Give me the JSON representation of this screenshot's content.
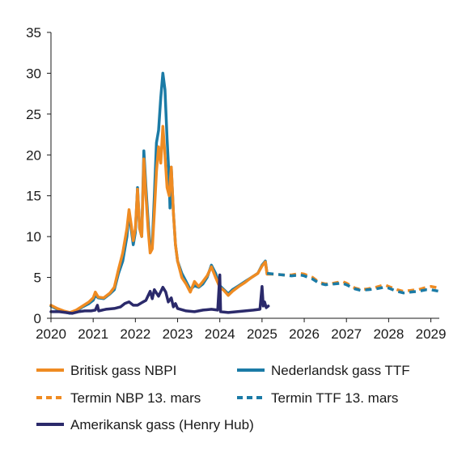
{
  "chart_data": {
    "type": "line",
    "title": "",
    "xlabel": "",
    "ylabel": "",
    "xlim": [
      2020,
      2029.2
    ],
    "ylim": [
      0,
      35
    ],
    "x_ticks": [
      "2020",
      "2021",
      "2022",
      "2023",
      "2024",
      "2025",
      "2026",
      "2027",
      "2028",
      "2029"
    ],
    "y_ticks": [
      "0",
      "5",
      "10",
      "15",
      "20",
      "25",
      "30",
      "35"
    ],
    "grid": false,
    "legend_position": "bottom",
    "series": [
      {
        "name": "Nederlandsk gass TTF",
        "color": "#1b7ba6",
        "dash": "solid",
        "points": [
          [
            2020.0,
            1.5
          ],
          [
            2020.15,
            1.1
          ],
          [
            2020.3,
            0.8
          ],
          [
            2020.45,
            0.6
          ],
          [
            2020.6,
            0.9
          ],
          [
            2020.75,
            1.4
          ],
          [
            2020.9,
            1.8
          ],
          [
            2021.0,
            2.2
          ],
          [
            2021.05,
            2.8
          ],
          [
            2021.12,
            2.5
          ],
          [
            2021.25,
            2.4
          ],
          [
            2021.4,
            3.0
          ],
          [
            2021.5,
            3.5
          ],
          [
            2021.6,
            5.5
          ],
          [
            2021.7,
            7.0
          ],
          [
            2021.8,
            10.0
          ],
          [
            2021.85,
            13.0
          ],
          [
            2021.9,
            11.0
          ],
          [
            2021.95,
            9.0
          ],
          [
            2022.0,
            10.5
          ],
          [
            2022.05,
            16.0
          ],
          [
            2022.1,
            11.0
          ],
          [
            2022.15,
            10.0
          ],
          [
            2022.2,
            20.5
          ],
          [
            2022.25,
            16.0
          ],
          [
            2022.3,
            12.0
          ],
          [
            2022.35,
            8.5
          ],
          [
            2022.4,
            9.0
          ],
          [
            2022.45,
            15.0
          ],
          [
            2022.5,
            21.5
          ],
          [
            2022.55,
            23.0
          ],
          [
            2022.6,
            27.0
          ],
          [
            2022.65,
            30.0
          ],
          [
            2022.7,
            28.0
          ],
          [
            2022.75,
            22.0
          ],
          [
            2022.8,
            17.0
          ],
          [
            2022.82,
            13.5
          ],
          [
            2022.85,
            18.5
          ],
          [
            2022.9,
            13.0
          ],
          [
            2022.95,
            9.0
          ],
          [
            2023.0,
            7.0
          ],
          [
            2023.1,
            5.5
          ],
          [
            2023.2,
            4.5
          ],
          [
            2023.3,
            3.5
          ],
          [
            2023.4,
            4.0
          ],
          [
            2023.5,
            3.8
          ],
          [
            2023.6,
            4.2
          ],
          [
            2023.7,
            5.0
          ],
          [
            2023.8,
            6.5
          ],
          [
            2023.9,
            5.5
          ],
          [
            2024.0,
            4.0
          ],
          [
            2024.1,
            3.5
          ],
          [
            2024.2,
            3.0
          ],
          [
            2024.3,
            3.5
          ],
          [
            2024.45,
            4.0
          ],
          [
            2024.6,
            4.5
          ],
          [
            2024.75,
            5.0
          ],
          [
            2024.9,
            5.5
          ],
          [
            2025.0,
            6.5
          ],
          [
            2025.08,
            7.0
          ],
          [
            2025.12,
            5.5
          ]
        ]
      },
      {
        "name": "Britisk gass NBPI",
        "color": "#ef8b22",
        "dash": "solid",
        "points": [
          [
            2020.0,
            1.6
          ],
          [
            2020.15,
            1.2
          ],
          [
            2020.3,
            0.9
          ],
          [
            2020.45,
            0.7
          ],
          [
            2020.6,
            1.0
          ],
          [
            2020.75,
            1.5
          ],
          [
            2020.9,
            2.0
          ],
          [
            2021.0,
            2.5
          ],
          [
            2021.05,
            3.2
          ],
          [
            2021.12,
            2.6
          ],
          [
            2021.25,
            2.5
          ],
          [
            2021.4,
            3.1
          ],
          [
            2021.5,
            3.8
          ],
          [
            2021.6,
            6.0
          ],
          [
            2021.7,
            8.0
          ],
          [
            2021.8,
            11.0
          ],
          [
            2021.85,
            13.3
          ],
          [
            2021.9,
            11.5
          ],
          [
            2021.95,
            9.5
          ],
          [
            2022.0,
            11.0
          ],
          [
            2022.05,
            15.8
          ],
          [
            2022.1,
            11.0
          ],
          [
            2022.15,
            10.0
          ],
          [
            2022.2,
            19.5
          ],
          [
            2022.25,
            15.0
          ],
          [
            2022.3,
            11.0
          ],
          [
            2022.35,
            8.0
          ],
          [
            2022.4,
            8.5
          ],
          [
            2022.45,
            13.0
          ],
          [
            2022.5,
            18.0
          ],
          [
            2022.55,
            21.0
          ],
          [
            2022.6,
            19.0
          ],
          [
            2022.65,
            23.5
          ],
          [
            2022.7,
            20.0
          ],
          [
            2022.75,
            16.0
          ],
          [
            2022.8,
            15.0
          ],
          [
            2022.85,
            18.5
          ],
          [
            2022.9,
            13.0
          ],
          [
            2022.95,
            9.0
          ],
          [
            2023.0,
            7.0
          ],
          [
            2023.1,
            5.0
          ],
          [
            2023.2,
            4.2
          ],
          [
            2023.3,
            3.2
          ],
          [
            2023.4,
            4.5
          ],
          [
            2023.5,
            3.9
          ],
          [
            2023.6,
            4.5
          ],
          [
            2023.7,
            5.2
          ],
          [
            2023.8,
            6.3
          ],
          [
            2023.9,
            5.0
          ],
          [
            2024.0,
            3.8
          ],
          [
            2024.1,
            3.4
          ],
          [
            2024.2,
            2.8
          ],
          [
            2024.3,
            3.3
          ],
          [
            2024.45,
            3.9
          ],
          [
            2024.6,
            4.4
          ],
          [
            2024.75,
            5.0
          ],
          [
            2024.9,
            5.5
          ],
          [
            2025.0,
            6.4
          ],
          [
            2025.08,
            6.9
          ],
          [
            2025.12,
            5.4
          ]
        ]
      },
      {
        "name": "Termin NBP 13. mars",
        "color": "#ef8b22",
        "dash": "dashed",
        "points": [
          [
            2025.12,
            5.4
          ],
          [
            2025.3,
            5.4
          ],
          [
            2025.5,
            5.3
          ],
          [
            2025.7,
            5.3
          ],
          [
            2025.9,
            5.5
          ],
          [
            2026.0,
            5.4
          ],
          [
            2026.2,
            5.0
          ],
          [
            2026.35,
            4.4
          ],
          [
            2026.5,
            4.2
          ],
          [
            2026.7,
            4.3
          ],
          [
            2026.9,
            4.5
          ],
          [
            2027.0,
            4.3
          ],
          [
            2027.2,
            3.7
          ],
          [
            2027.35,
            3.5
          ],
          [
            2027.5,
            3.6
          ],
          [
            2027.7,
            3.8
          ],
          [
            2027.9,
            4.1
          ],
          [
            2028.0,
            3.9
          ],
          [
            2028.2,
            3.5
          ],
          [
            2028.35,
            3.3
          ],
          [
            2028.5,
            3.4
          ],
          [
            2028.7,
            3.5
          ],
          [
            2028.9,
            3.8
          ],
          [
            2029.0,
            3.9
          ],
          [
            2029.2,
            3.7
          ]
        ]
      },
      {
        "name": "Termin TTF 13. mars",
        "color": "#1b7ba6",
        "dash": "dashed",
        "points": [
          [
            2025.12,
            5.5
          ],
          [
            2025.3,
            5.4
          ],
          [
            2025.5,
            5.3
          ],
          [
            2025.7,
            5.2
          ],
          [
            2025.9,
            5.3
          ],
          [
            2026.0,
            5.2
          ],
          [
            2026.2,
            4.8
          ],
          [
            2026.35,
            4.3
          ],
          [
            2026.5,
            4.1
          ],
          [
            2026.7,
            4.2
          ],
          [
            2026.9,
            4.3
          ],
          [
            2027.0,
            4.1
          ],
          [
            2027.2,
            3.6
          ],
          [
            2027.35,
            3.4
          ],
          [
            2027.5,
            3.5
          ],
          [
            2027.7,
            3.6
          ],
          [
            2027.9,
            3.8
          ],
          [
            2028.0,
            3.7
          ],
          [
            2028.2,
            3.3
          ],
          [
            2028.35,
            3.1
          ],
          [
            2028.5,
            3.2
          ],
          [
            2028.7,
            3.3
          ],
          [
            2028.9,
            3.5
          ],
          [
            2029.0,
            3.5
          ],
          [
            2029.2,
            3.3
          ]
        ]
      },
      {
        "name": "Amerikansk gass (Henry Hub)",
        "color": "#2b2a6b",
        "dash": "solid",
        "points": [
          [
            2020.0,
            0.8
          ],
          [
            2020.2,
            0.8
          ],
          [
            2020.35,
            0.7
          ],
          [
            2020.5,
            0.6
          ],
          [
            2020.65,
            0.8
          ],
          [
            2020.8,
            0.9
          ],
          [
            2020.95,
            0.9
          ],
          [
            2021.05,
            1.0
          ],
          [
            2021.1,
            1.6
          ],
          [
            2021.13,
            0.9
          ],
          [
            2021.3,
            1.1
          ],
          [
            2021.5,
            1.2
          ],
          [
            2021.65,
            1.4
          ],
          [
            2021.75,
            1.8
          ],
          [
            2021.85,
            2.0
          ],
          [
            2021.95,
            1.6
          ],
          [
            2022.05,
            1.6
          ],
          [
            2022.15,
            1.9
          ],
          [
            2022.25,
            2.2
          ],
          [
            2022.35,
            3.3
          ],
          [
            2022.4,
            2.4
          ],
          [
            2022.45,
            3.5
          ],
          [
            2022.55,
            2.7
          ],
          [
            2022.65,
            3.8
          ],
          [
            2022.72,
            3.2
          ],
          [
            2022.78,
            2.0
          ],
          [
            2022.85,
            2.5
          ],
          [
            2022.9,
            1.4
          ],
          [
            2022.95,
            1.8
          ],
          [
            2023.0,
            1.2
          ],
          [
            2023.2,
            0.9
          ],
          [
            2023.4,
            0.8
          ],
          [
            2023.6,
            1.0
          ],
          [
            2023.8,
            1.1
          ],
          [
            2023.95,
            1.0
          ],
          [
            2024.0,
            5.3
          ],
          [
            2024.02,
            0.8
          ],
          [
            2024.2,
            0.7
          ],
          [
            2024.4,
            0.8
          ],
          [
            2024.6,
            0.9
          ],
          [
            2024.8,
            1.0
          ],
          [
            2024.95,
            1.1
          ],
          [
            2025.0,
            3.9
          ],
          [
            2025.03,
            1.5
          ],
          [
            2025.06,
            2.0
          ],
          [
            2025.1,
            1.3
          ],
          [
            2025.15,
            1.5
          ]
        ]
      }
    ],
    "legend_rows": [
      [
        "Britisk gass NBPI",
        "Nederlandsk gass TTF"
      ],
      [
        "Termin NBP 13. mars",
        "Termin TTF 13. mars"
      ],
      [
        "Amerikansk gass (Henry Hub)"
      ]
    ]
  }
}
